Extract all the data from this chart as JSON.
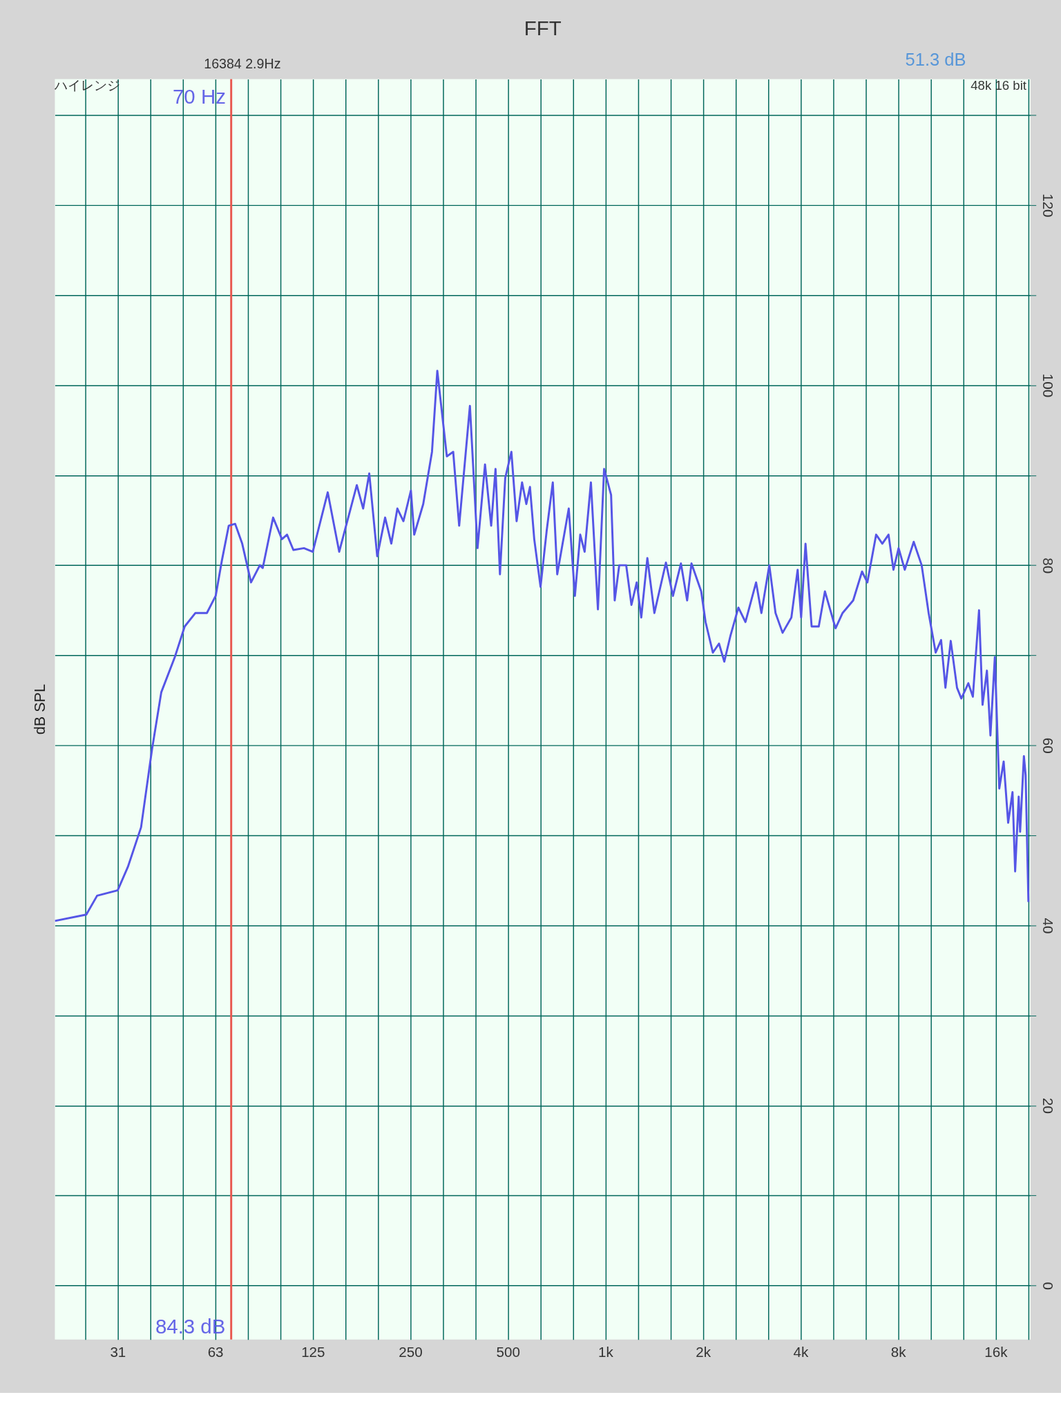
{
  "chart_data": {
    "type": "line",
    "title": "FFT",
    "ylabel": "dB SPL",
    "log": "x",
    "grid": true,
    "line_style": "solid",
    "xlim": [
      20,
      20500
    ],
    "ylim": [
      -6,
      134
    ],
    "xticks": [
      {
        "value": 24.8,
        "label": null
      },
      {
        "value": 31.25,
        "label": "31"
      },
      {
        "value": 39.4,
        "label": null
      },
      {
        "value": 49.6,
        "label": null
      },
      {
        "value": 62.5,
        "label": "63"
      },
      {
        "value": 78.7,
        "label": null
      },
      {
        "value": 99.2,
        "label": null
      },
      125,
      {
        "value": 157.5,
        "label": null
      },
      {
        "value": 198.4,
        "label": null
      },
      250,
      {
        "value": 315,
        "label": null
      },
      {
        "value": 397,
        "label": null
      },
      500,
      {
        "value": 630,
        "label": null
      },
      {
        "value": 794,
        "label": null
      },
      {
        "value": 1000,
        "label": "1k"
      },
      {
        "value": 1260,
        "label": null
      },
      {
        "value": 1587,
        "label": null
      },
      {
        "value": 2000,
        "label": "2k"
      },
      {
        "value": 2520,
        "label": null
      },
      {
        "value": 3175,
        "label": null
      },
      {
        "value": 4000,
        "label": "4k"
      },
      {
        "value": 5040,
        "label": null
      },
      {
        "value": 6350,
        "label": null
      },
      {
        "value": 8000,
        "label": "8k"
      },
      {
        "value": 10080,
        "label": null
      },
      {
        "value": 12700,
        "label": null
      },
      {
        "value": 16000,
        "label": "16k"
      },
      {
        "value": 20160,
        "label": null
      }
    ],
    "yticks": [
      0,
      {
        "value": 10,
        "label": null
      },
      20,
      {
        "value": 30,
        "label": null
      },
      40,
      {
        "value": 50,
        "label": null
      },
      60,
      {
        "value": 70,
        "label": null
      },
      80,
      {
        "value": 90,
        "label": null
      },
      100,
      {
        "value": 110,
        "label": null
      },
      120,
      {
        "value": 130,
        "label": null
      }
    ],
    "ref_lines": [
      {
        "axis": "x",
        "value": 70,
        "label": "70 Hz",
        "color": "#e8574f"
      }
    ],
    "annotations": [
      "16384  2.9Hz",
      "51.3 dB",
      "ハイレンジ",
      "48k 16 bit",
      "84.3 dB"
    ],
    "series": [
      {
        "color": "#5555e6",
        "x": [
          20,
          25,
          27,
          31.25,
          33.6,
          36.9,
          39.9,
          42.6,
          46.9,
          50.3,
          54.3,
          58.9,
          62.7,
          65.5,
          68.8,
          72,
          75.7,
          80.6,
          85.8,
          87.6,
          94.3,
          100.4,
          104.1,
          108.9,
          117.4,
          125,
          139,
          150.8,
          170.9,
          178.8,
          186.7,
          197.6,
          209,
          218.4,
          228,
          238,
          251,
          257,
          274,
          291.6,
          302.8,
          324,
          339,
          353.7,
          381.8,
          403,
          425,
          444,
          458,
          472.6,
          490.7,
          512.6,
          532,
          553,
          570,
          585,
          603,
          630.6,
          659,
          688,
          710,
          737.6,
          770.6,
          805,
          836,
          862.6,
          902,
          948,
          990.6,
          1041,
          1068,
          1103,
          1159,
          1203,
          1249,
          1290,
          1347,
          1416,
          1537,
          1616,
          1710,
          1787,
          1843,
          1975,
          2037,
          2146,
          2241,
          2327,
          2432,
          2572,
          2705,
          2917,
          3029,
          3204,
          3349,
          3521,
          3748,
          3919,
          4017,
          4144,
          4328,
          4553,
          4757,
          5130,
          5393,
          5815,
          6192,
          6431,
          6845,
          7152,
          7475,
          7740,
          8030,
          8390,
          8940,
          9460,
          9940,
          10450,
          10860,
          11200,
          11630,
          12160,
          12540,
          13180,
          13610,
          14220,
          14580,
          15040,
          15420,
          15910,
          16420,
          16940,
          17490,
          18040,
          18380,
          18850,
          19040,
          19560,
          19800,
          20200
        ],
        "values": [
          40.5,
          41.2,
          43.3,
          43.9,
          46.5,
          50.9,
          59.6,
          65.9,
          69.8,
          73.2,
          74.7,
          74.7,
          76.6,
          80.5,
          84.4,
          84.6,
          82.4,
          78.1,
          80,
          79.7,
          85.3,
          82.9,
          83.4,
          81.7,
          81.9,
          81.5,
          88.1,
          81.5,
          88.9,
          86.3,
          90.2,
          81,
          85.3,
          82.4,
          86.3,
          84.9,
          88.3,
          83.4,
          86.8,
          92.6,
          101.6,
          92.1,
          92.6,
          84.4,
          97.7,
          81.9,
          91.2,
          84.4,
          90.7,
          79,
          89.7,
          92.6,
          84.9,
          89.2,
          86.8,
          88.7,
          82.9,
          77.6,
          83.9,
          89.2,
          79,
          82.4,
          86.3,
          76.6,
          83.4,
          81.5,
          89.2,
          75.1,
          90.7,
          87.8,
          76.1,
          80,
          80,
          75.6,
          78.1,
          74.2,
          80.8,
          74.7,
          80.3,
          76.6,
          80.2,
          76.1,
          80.2,
          77.1,
          73.7,
          70.3,
          71.3,
          69.3,
          72.2,
          75.3,
          73.7,
          78.1,
          74.7,
          80,
          74.7,
          72.5,
          74.2,
          79.5,
          74.2,
          82.4,
          73.2,
          73.2,
          77.1,
          73,
          74.7,
          76.1,
          79.3,
          78.1,
          83.4,
          82.4,
          83.4,
          79.5,
          81.9,
          79.5,
          82.6,
          80,
          74.7,
          70.3,
          71.7,
          66.4,
          71.6,
          66.4,
          65.2,
          66.9,
          65.4,
          75,
          64.5,
          68.3,
          61.1,
          69.8,
          55.2,
          58.2,
          51.4,
          54.8,
          46,
          54.3,
          50.4,
          58.8,
          56.7,
          42.6
        ]
      }
    ]
  }
}
